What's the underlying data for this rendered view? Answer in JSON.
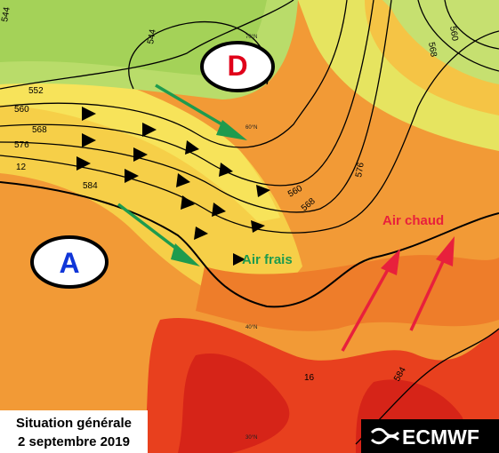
{
  "pressure_centers": [
    {
      "label": "D"
    },
    {
      "label": "A"
    }
  ],
  "air_masses": [
    {
      "label": "Air frais"
    },
    {
      "label": "Air chaud"
    }
  ],
  "contour_labels": [
    "544",
    "552",
    "560",
    "568",
    "576",
    "584",
    "12",
    "544",
    "560",
    "568",
    "576",
    "560",
    "568",
    "584",
    "16"
  ],
  "latitude_labels": [
    "70°N",
    "60°N",
    "40°N",
    "30°N"
  ],
  "caption": {
    "line1": "Situation générale",
    "line2": "2 septembre 2019"
  },
  "logo": "ECMWF"
}
